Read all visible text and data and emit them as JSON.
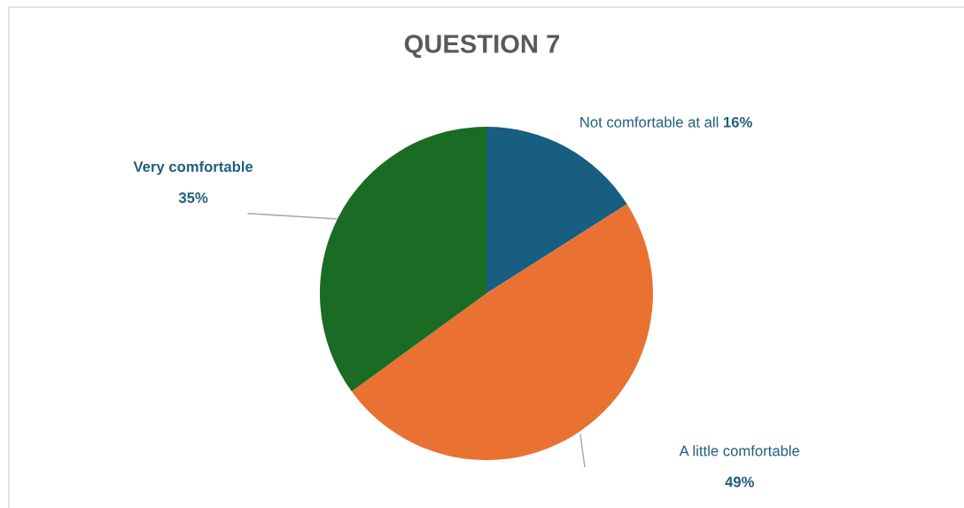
{
  "chart_data": {
    "type": "pie",
    "title": "QUESTION 7",
    "categories": [
      "Not comfortable at all",
      "A little comfortable",
      "Very comfortable"
    ],
    "values": [
      16,
      49,
      35
    ],
    "value_labels": [
      "16%",
      "49%",
      "35%"
    ],
    "colors": [
      "#175e80",
      "#e97132",
      "#1a6b24"
    ],
    "legend": false
  }
}
